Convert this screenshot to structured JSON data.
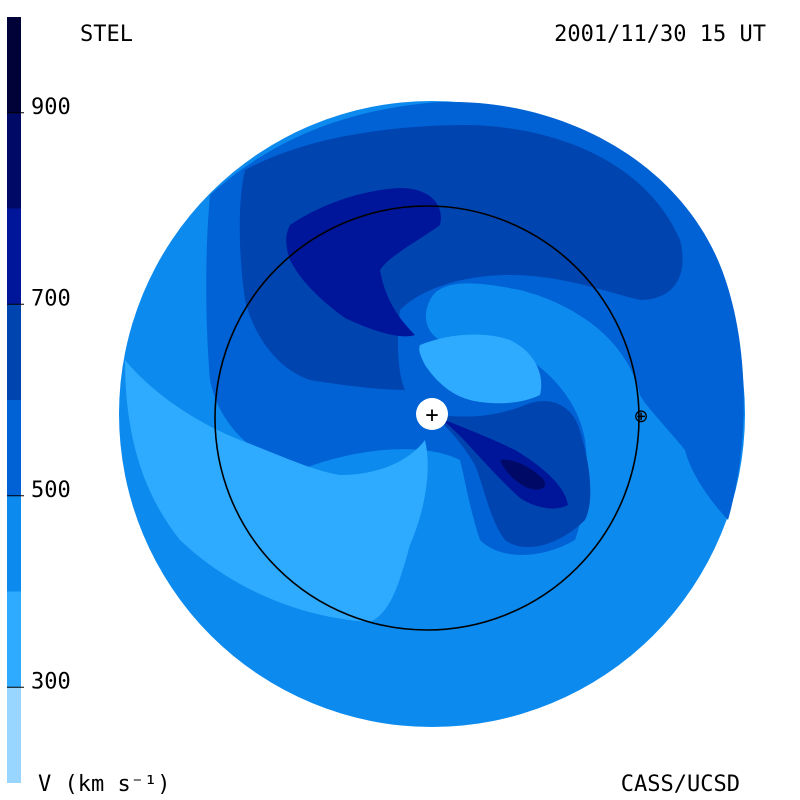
{
  "chart_data": {
    "type": "heatmap",
    "source_label": "STEL",
    "timestamp": "2001/11/30 15 UT",
    "credit": "CASS/UCSD",
    "colorbar": {
      "label": "V (km s⁻¹)",
      "ticks": [
        "300",
        "500",
        "700",
        "900"
      ],
      "tick_values": [
        300,
        500,
        700,
        900
      ],
      "range": [
        200,
        1000
      ],
      "bands": [
        {
          "from": 200,
          "to": 300,
          "color": "#99d6ff"
        },
        {
          "from": 300,
          "to": 400,
          "color": "#2eaaff"
        },
        {
          "from": 400,
          "to": 500,
          "color": "#0c8aee"
        },
        {
          "from": 500,
          "to": 600,
          "color": "#0062d4"
        },
        {
          "from": 600,
          "to": 700,
          "color": "#0044b0"
        },
        {
          "from": 700,
          "to": 800,
          "color": "#00169a"
        },
        {
          "from": 800,
          "to": 900,
          "color": "#000a66"
        },
        {
          "from": 900,
          "to": 1000,
          "color": "#000238"
        }
      ]
    },
    "markers": {
      "sun": "+",
      "earth": "⊕",
      "earth_orbit": "1 AU circle"
    }
  }
}
